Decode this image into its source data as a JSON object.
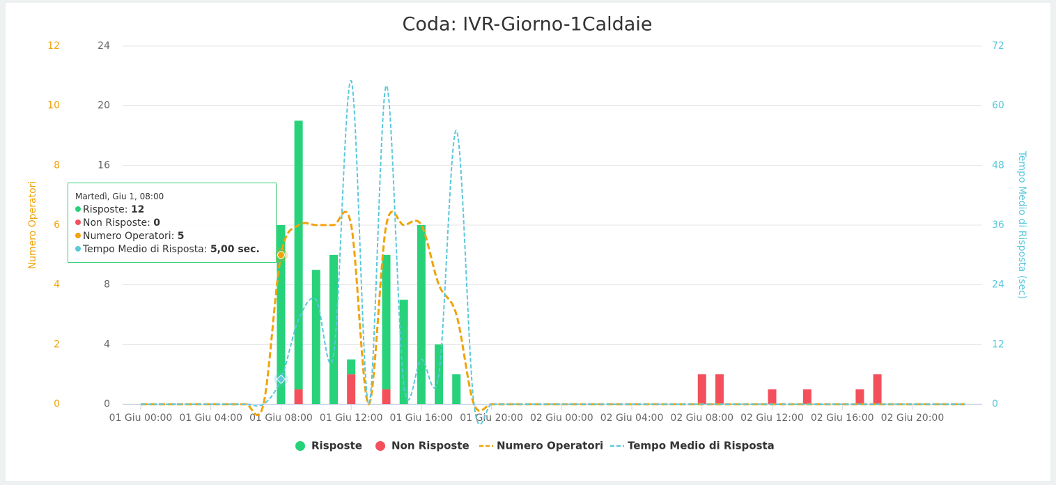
{
  "chart_data": {
    "type": "combo",
    "title": "Coda: IVR-Giorno-1Caldaie",
    "y2label": "Tempo Medio di Risposta (sec)",
    "y3label": "Numero Operatori",
    "categories": [
      "01 Giu 00:00",
      null,
      null,
      null,
      "01 Giu 04:00",
      null,
      null,
      null,
      "01 Giu 08:00",
      null,
      null,
      null,
      "01 Giu 12:00",
      null,
      null,
      null,
      "01 Giu 16:00",
      null,
      null,
      null,
      "01 Giu 20:00",
      null,
      null,
      null,
      "02 Giu 00:00",
      null,
      null,
      null,
      "02 Giu 04:00",
      null,
      null,
      null,
      "02 Giu 08:00",
      null,
      null,
      null,
      "02 Giu 12:00",
      null,
      null,
      null,
      "02 Giu 16:00",
      null,
      null,
      null,
      "02 Giu 20:00",
      null,
      null,
      null
    ],
    "ylim": [
      0,
      24
    ],
    "yticks": [
      0,
      4,
      8,
      12,
      16,
      20,
      24
    ],
    "y2lim": [
      0,
      72
    ],
    "y2ticks": [
      0,
      12,
      24,
      36,
      48,
      60,
      72
    ],
    "y3lim": [
      0,
      12
    ],
    "y3ticks": [
      0,
      2,
      4,
      6,
      8,
      10,
      12
    ],
    "y2color": "#5bc8dc",
    "y3color": "#f0a30a",
    "grid": true,
    "legend": "bottom",
    "series": [
      {
        "name": "Risposte",
        "type": "bar",
        "stack": true,
        "color": "#27d27a",
        "values": [
          0,
          0,
          0,
          0,
          0,
          0,
          0,
          0,
          12,
          18,
          9,
          10,
          1,
          0,
          9,
          7,
          12,
          4,
          2,
          0,
          0,
          0,
          0,
          0,
          0,
          0,
          0,
          0,
          0,
          0,
          0,
          0,
          0,
          0,
          0,
          0,
          0,
          0,
          0,
          0,
          0,
          0,
          0,
          0,
          0,
          0,
          0,
          0
        ]
      },
      {
        "name": "Non Risposte",
        "type": "bar",
        "stack": true,
        "color": "#f4505c",
        "values": [
          0,
          0,
          0,
          0,
          0,
          0,
          0,
          0,
          0,
          1,
          0,
          0,
          2,
          0,
          1,
          0,
          0,
          0,
          0,
          0,
          0,
          0,
          0,
          0,
          0,
          0,
          0,
          0,
          0,
          0,
          0,
          0,
          2,
          2,
          0,
          0,
          1,
          0,
          1,
          0,
          0,
          1,
          2,
          0,
          0,
          0,
          0,
          0
        ]
      },
      {
        "name": "Numero Operatori",
        "type": "line",
        "axis": "y3",
        "dashed": true,
        "color": "#f0a30a",
        "values": [
          0,
          0,
          0,
          0,
          0,
          0,
          0,
          0,
          5,
          6,
          6,
          6,
          6,
          0,
          6,
          6,
          6,
          4,
          3,
          0,
          0,
          0,
          0,
          0,
          0,
          0,
          0,
          0,
          0,
          0,
          0,
          0,
          0,
          0,
          0,
          0,
          0,
          0,
          0,
          0,
          0,
          0,
          0,
          0,
          0,
          0,
          0,
          0
        ]
      },
      {
        "name": "Tempo Medio di Risposta",
        "type": "line",
        "axis": "y2",
        "dashed": true,
        "color": "#5bc8dc",
        "values": [
          0,
          0,
          0,
          0,
          0,
          0,
          0,
          0,
          5,
          17,
          21,
          10,
          65,
          0,
          64,
          4,
          9,
          6,
          55,
          0,
          0,
          0,
          0,
          0,
          0,
          0,
          0,
          0,
          0,
          0,
          0,
          0,
          0,
          0,
          0,
          0,
          0,
          0,
          0,
          0,
          0,
          0,
          0,
          0,
          0,
          0,
          0,
          0
        ]
      }
    ],
    "tooltip": {
      "title": "Martedì, Giu 1, 08:00",
      "index": 8,
      "values": [
        "12",
        "0",
        "5",
        "5,00 sec."
      ]
    }
  }
}
